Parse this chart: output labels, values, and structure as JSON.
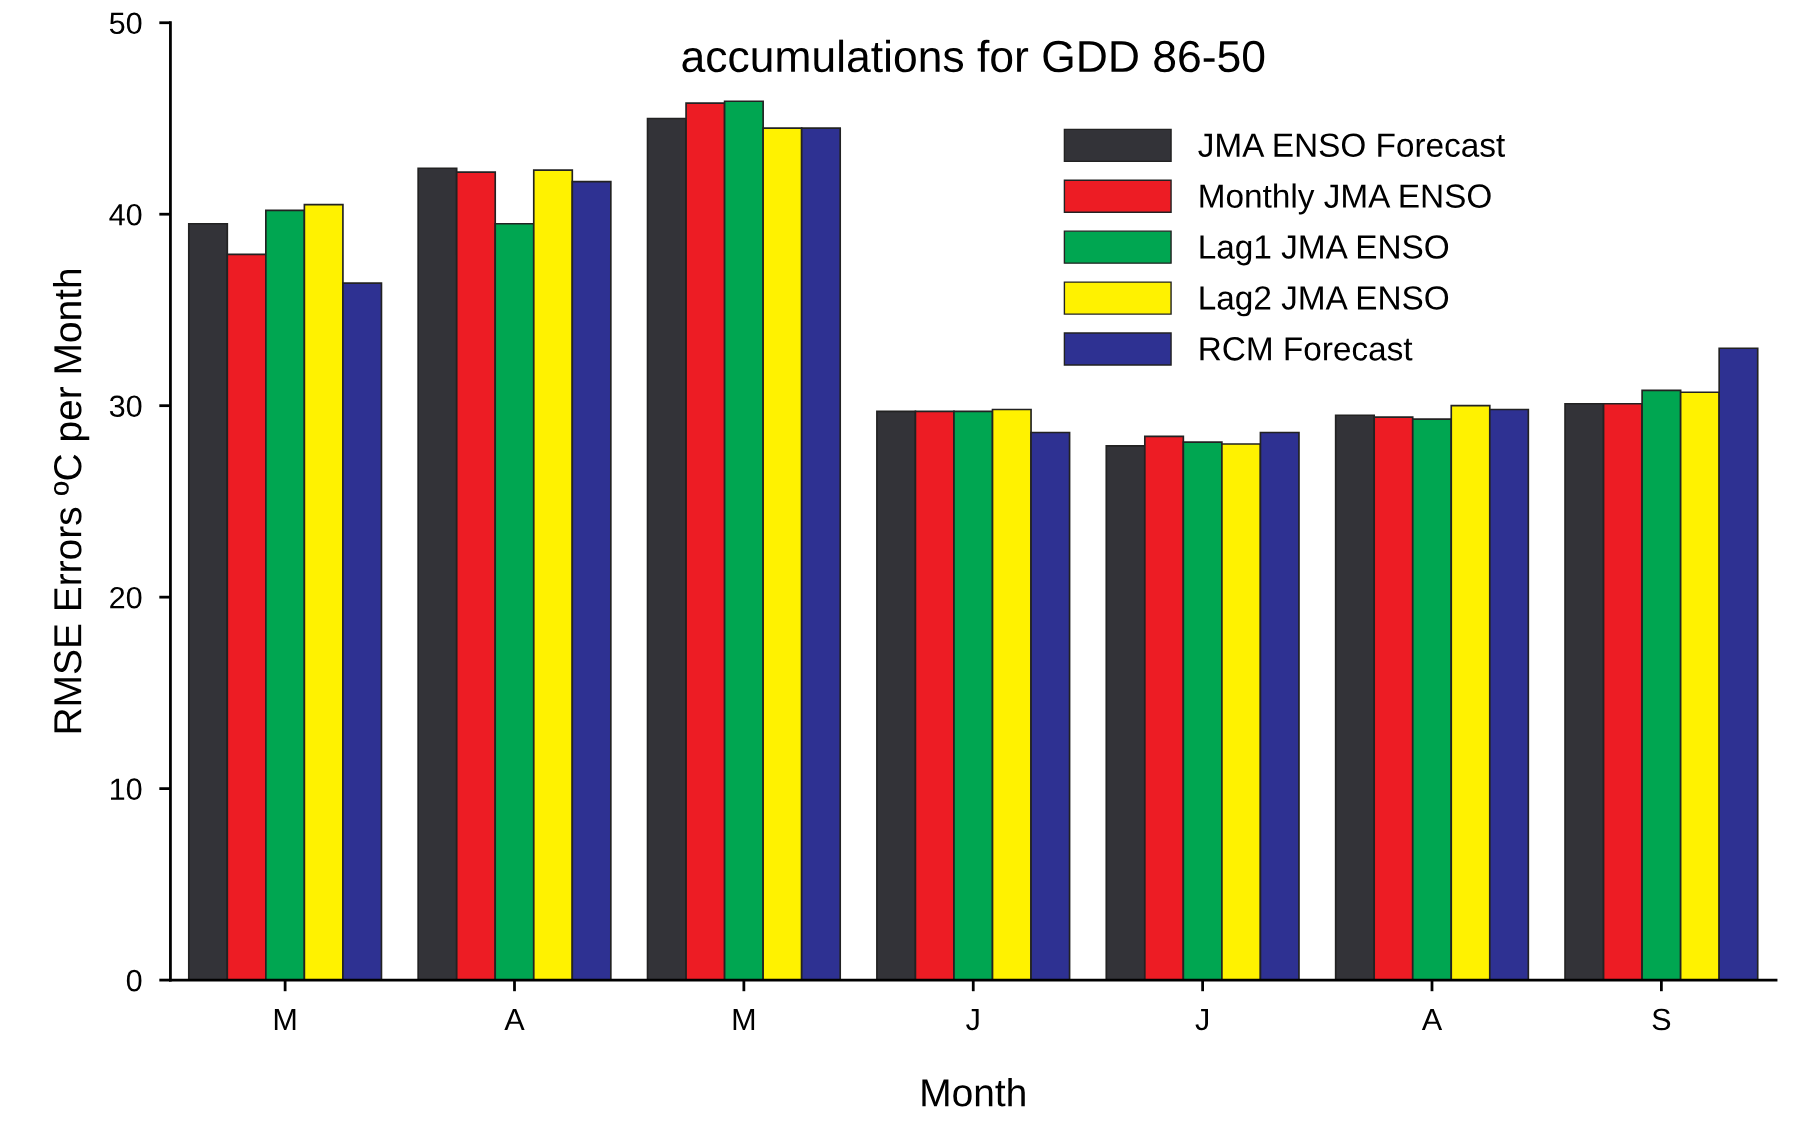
{
  "chart_data": {
    "type": "bar",
    "title": "accumulations for GDD 86-50",
    "xlabel": "Month",
    "ylabel": "RMSE Errors ºC per Month",
    "categories": [
      "M",
      "A",
      "M",
      "J",
      "J",
      "A",
      "S"
    ],
    "series": [
      {
        "name": "JMA ENSO Forecast",
        "color": "#333338",
        "values": [
          39.5,
          42.4,
          45.0,
          29.7,
          27.9,
          29.5,
          30.1
        ]
      },
      {
        "name": "Monthly JMA ENSO",
        "color": "#ed1c24",
        "values": [
          37.9,
          42.2,
          45.8,
          29.7,
          28.4,
          29.4,
          30.1
        ]
      },
      {
        "name": "Lag1 JMA ENSO",
        "color": "#00a651",
        "values": [
          40.2,
          39.5,
          45.9,
          29.7,
          28.1,
          29.3,
          30.8
        ]
      },
      {
        "name": "Lag2 JMA ENSO",
        "color": "#fff200",
        "values": [
          40.5,
          42.3,
          44.5,
          29.8,
          28.0,
          30.0,
          30.7
        ]
      },
      {
        "name": "RCM Forecast",
        "color": "#2e3192",
        "values": [
          36.4,
          41.7,
          44.5,
          28.6,
          28.6,
          29.8,
          33.0
        ]
      }
    ],
    "ylim": [
      0,
      50
    ],
    "yticks": [
      0,
      10,
      20,
      30,
      40,
      50
    ],
    "grid": false,
    "legend": "top right"
  }
}
